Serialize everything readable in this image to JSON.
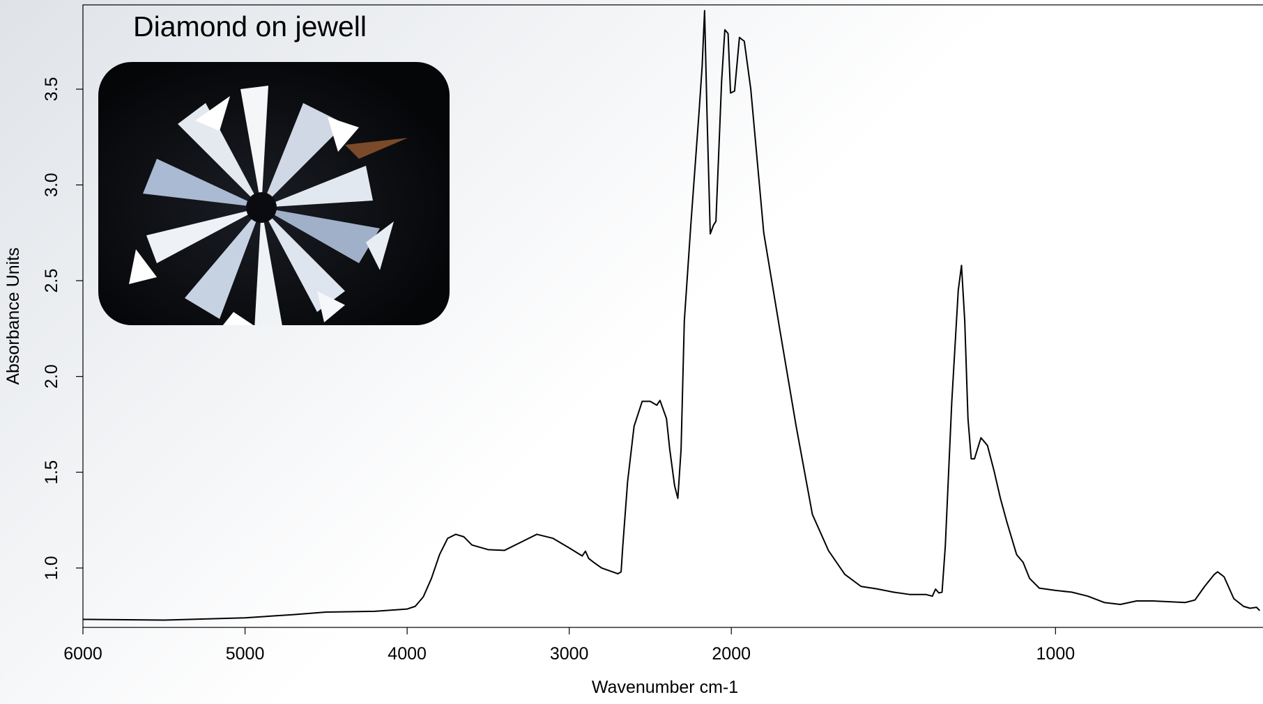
{
  "chart_data": {
    "type": "line",
    "title": "Diamond on jewell",
    "xlabel": "Wavenumber cm-1",
    "ylabel": "Absorbance Units",
    "color": "#000000",
    "xlim": [
      6000,
      360
    ],
    "xscale": {
      "break": 2000,
      "factor": 2
    },
    "xticks": [
      6000,
      5000,
      4000,
      3000,
      2000,
      1000
    ],
    "ylim": [
      0.69,
      3.94
    ],
    "yticks": [
      {
        "value": 1,
        "label": "1.0"
      },
      1.5,
      {
        "value": 2,
        "label": "2.0"
      },
      2.5,
      {
        "value": 3,
        "label": "3.0"
      },
      3.5
    ],
    "x": [
      6000,
      5500,
      5000,
      4700,
      4500,
      4200,
      4000,
      3950,
      3900,
      3850,
      3800,
      3750,
      3700,
      3650,
      3600,
      3500,
      3400,
      3300,
      3200,
      3100,
      3000,
      2920,
      2900,
      2880,
      2850,
      2800,
      2700,
      2680,
      2670,
      2640,
      2600,
      2550,
      2500,
      2460,
      2440,
      2400,
      2380,
      2350,
      2330,
      2310,
      2290,
      2250,
      2200,
      2180,
      2165,
      2150,
      2130,
      2110,
      2095,
      2080,
      2060,
      2040,
      2020,
      2005,
      1990,
      1975,
      1960,
      1940,
      1900,
      1850,
      1800,
      1750,
      1700,
      1650,
      1600,
      1550,
      1500,
      1450,
      1400,
      1380,
      1370,
      1360,
      1350,
      1340,
      1320,
      1300,
      1290,
      1280,
      1270,
      1260,
      1250,
      1230,
      1210,
      1190,
      1170,
      1150,
      1120,
      1100,
      1080,
      1050,
      1000,
      950,
      900,
      850,
      800,
      750,
      700,
      650,
      600,
      570,
      540,
      510,
      500,
      480,
      450,
      420,
      400,
      380,
      370
    ],
    "values": [
      0.732,
      0.728,
      0.74,
      0.757,
      0.77,
      0.774,
      0.786,
      0.8,
      0.85,
      0.946,
      1.07,
      1.155,
      1.176,
      1.163,
      1.12,
      1.096,
      1.092,
      1.134,
      1.176,
      1.155,
      1.105,
      1.063,
      1.088,
      1.05,
      1.03,
      1.0,
      0.97,
      0.98,
      1.11,
      1.45,
      1.74,
      1.87,
      1.87,
      1.85,
      1.875,
      1.78,
      1.62,
      1.43,
      1.364,
      1.62,
      2.29,
      2.79,
      3.37,
      3.62,
      3.91,
      3.37,
      2.745,
      2.79,
      2.81,
      3.12,
      3.54,
      3.81,
      3.79,
      3.48,
      3.49,
      3.77,
      3.75,
      3.5,
      2.75,
      2.24,
      1.74,
      1.28,
      1.09,
      0.967,
      0.904,
      0.891,
      0.874,
      0.862,
      0.862,
      0.853,
      0.89,
      0.87,
      0.874,
      1.113,
      1.867,
      2.45,
      2.58,
      2.29,
      1.78,
      1.57,
      1.57,
      1.68,
      1.64,
      1.51,
      1.364,
      1.24,
      1.07,
      1.03,
      0.946,
      0.895,
      0.883,
      0.874,
      0.853,
      0.82,
      0.81,
      0.828,
      0.828,
      0.824,
      0.82,
      0.833,
      0.904,
      0.967,
      0.98,
      0.954,
      0.84,
      0.8,
      0.79,
      0.795,
      0.778
    ]
  }
}
